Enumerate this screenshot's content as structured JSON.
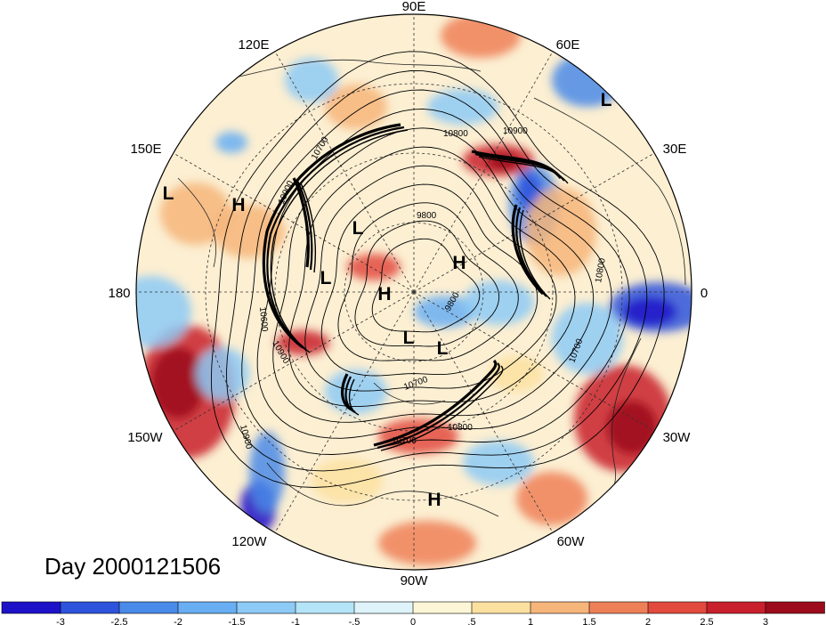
{
  "title": "Day 2000121506",
  "longitude_labels": [
    "90E",
    "60E",
    "30E",
    "0",
    "30W",
    "60W",
    "90W",
    "120W",
    "150W",
    "180",
    "150E",
    "120E"
  ],
  "pressure_centers": [
    {
      "type": "L",
      "label": "L"
    },
    {
      "type": "L",
      "label": "L"
    },
    {
      "type": "L",
      "label": "L"
    },
    {
      "type": "L",
      "label": "L"
    },
    {
      "type": "L",
      "label": "L"
    },
    {
      "type": "L",
      "label": "L"
    },
    {
      "type": "H",
      "label": "H"
    },
    {
      "type": "H",
      "label": "H"
    },
    {
      "type": "H",
      "label": "H"
    },
    {
      "type": "H",
      "label": "H"
    }
  ],
  "contour_labels": [
    "10800",
    "10900",
    "10700",
    "10900",
    "9800",
    "10800",
    "10600",
    "10700",
    "10700",
    "10800",
    "10900",
    "10700",
    "10900",
    "9800"
  ],
  "colorbar": {
    "ticks": [
      "-3",
      "-2.5",
      "-2",
      "-1.5",
      "-1",
      "-.5",
      "0",
      ".5",
      "1",
      "1.5",
      "2",
      "2.5",
      "3"
    ],
    "colors": [
      "#1e12c8",
      "#2e54dc",
      "#4a8ae8",
      "#69aef2",
      "#8dcaf6",
      "#b4e4f8",
      "#def3fa",
      "#fdf6d6",
      "#fbe0a0",
      "#f6b57a",
      "#ee8058",
      "#e24a3e",
      "#c8202c",
      "#9c0c1c"
    ]
  },
  "colors": {
    "contour": "#000000",
    "jet": "#000000",
    "grid": "#333333"
  }
}
